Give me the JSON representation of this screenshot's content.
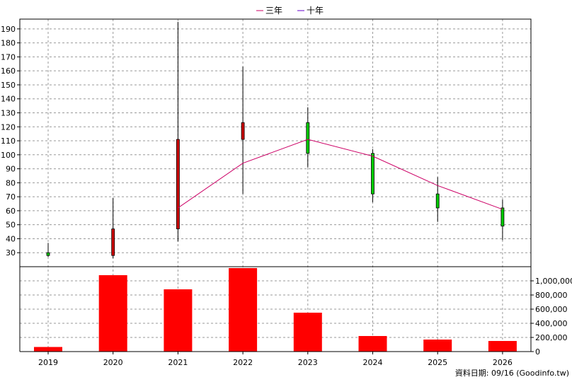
{
  "chart_data": [
    {
      "type": "candlestick",
      "legend": [
        {
          "name": "三年",
          "color": "#cc0066"
        },
        {
          "name": "十年",
          "color": "#6600cc"
        }
      ],
      "legend_position": "top",
      "grid": true,
      "categories": [
        "2019",
        "2020",
        "2021",
        "2022",
        "2023",
        "2024",
        "2025",
        "2026"
      ],
      "candles": [
        {
          "open": 28,
          "high": 37,
          "low": 27,
          "close": 30,
          "color": "#00cc00"
        },
        {
          "open": 28,
          "high": 69,
          "low": 26,
          "close": 47,
          "color": "#cc0000"
        },
        {
          "open": 47,
          "high": 195,
          "low": 38,
          "close": 111,
          "color": "#cc0000"
        },
        {
          "open": 111,
          "high": 163,
          "low": 72,
          "close": 123,
          "color": "#cc0000"
        },
        {
          "open": 123,
          "high": 134,
          "low": 91,
          "close": 101,
          "color": "#00cc00"
        },
        {
          "open": 101,
          "high": 104,
          "low": 66,
          "close": 72,
          "color": "#00cc00"
        },
        {
          "open": 72,
          "high": 84,
          "low": 52,
          "close": 62,
          "color": "#00cc00"
        },
        {
          "open": 62,
          "high": 68,
          "low": 39,
          "close": 49,
          "color": "#00cc00"
        }
      ],
      "series": [
        {
          "name": "三年",
          "color": "#cc0066",
          "values": [
            null,
            null,
            62,
            94,
            111,
            99,
            78,
            61
          ]
        }
      ],
      "y_ticks": [
        "30",
        "40",
        "50",
        "60",
        "70",
        "80",
        "90",
        "100",
        "110",
        "120",
        "130",
        "140",
        "150",
        "160",
        "170",
        "180",
        "190"
      ],
      "ylim": [
        20,
        197
      ],
      "y_axis_side": "left"
    },
    {
      "type": "bar",
      "categories": [
        "2019",
        "2020",
        "2021",
        "2022",
        "2023",
        "2024",
        "2025",
        "2026"
      ],
      "values": [
        65000,
        1080000,
        880000,
        1180000,
        550000,
        220000,
        170000,
        150000
      ],
      "bar_color": "#ff0000",
      "y_ticks": [
        "0",
        "200,000",
        "400,000",
        "600,000",
        "800,000",
        "1,000,000"
      ],
      "ylim": [
        0,
        1180000
      ],
      "y_axis_side": "right",
      "grid": true
    }
  ],
  "footer_text": "資料日期: 09/16  (Goodinfo.tw)"
}
